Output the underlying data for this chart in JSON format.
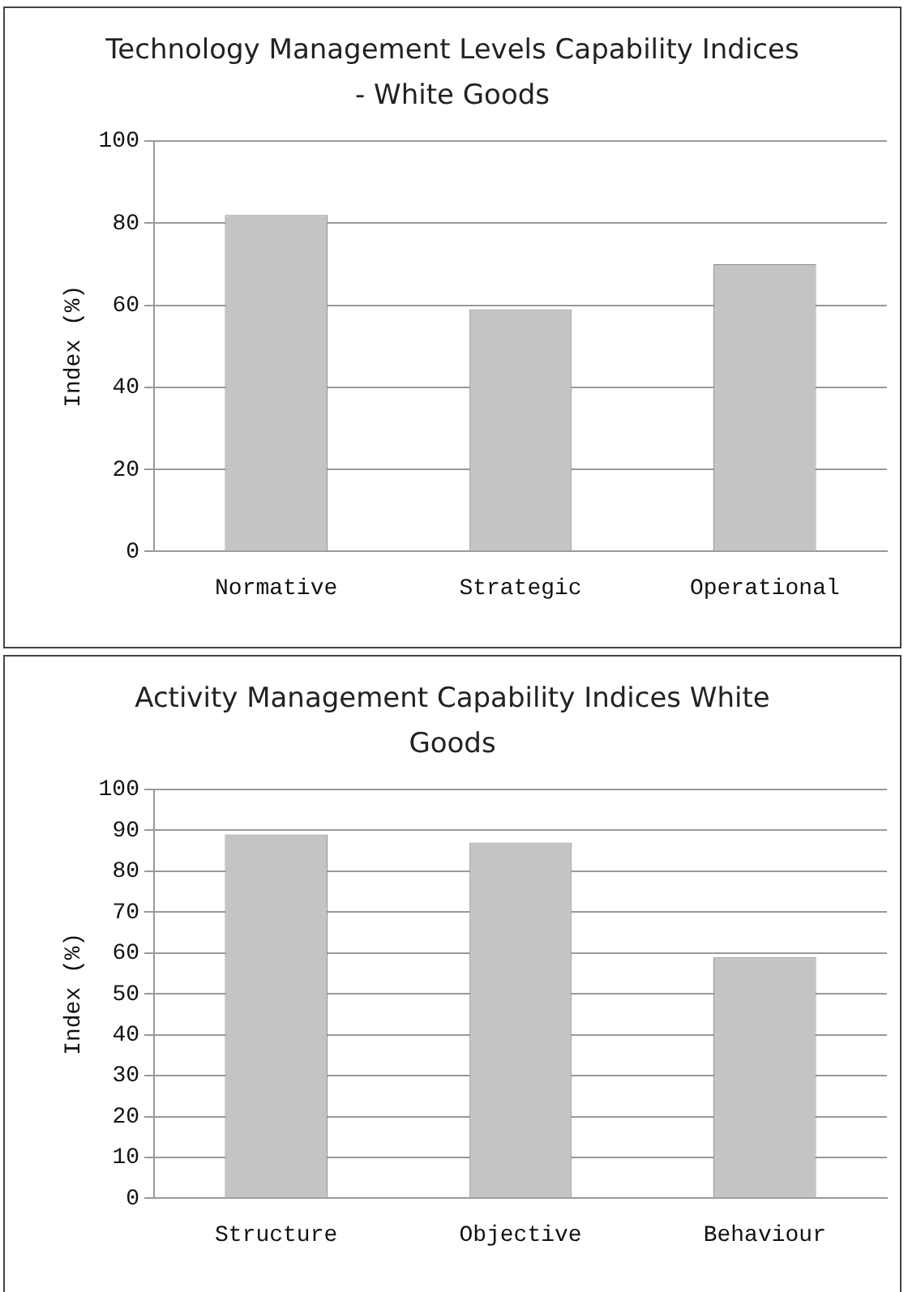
{
  "chart_data": [
    {
      "type": "bar",
      "title": "Technology Management Levels Capability Indices - White Goods",
      "ylabel": "Index (%)",
      "categories": [
        "Normative",
        "Strategic",
        "Operational"
      ],
      "values": [
        82,
        59,
        70
      ],
      "color": "#c4c4c4",
      "ylim": [
        0,
        100
      ],
      "yticks": [
        0,
        20,
        40,
        60,
        80,
        100
      ],
      "grid": "y"
    },
    {
      "type": "bar",
      "title": "Activity Management Capability Indices White Goods",
      "ylabel": "Index (%)",
      "categories": [
        "Structure",
        "Objective",
        "Behaviour"
      ],
      "values": [
        89,
        87,
        59
      ],
      "color": "#c4c4c4",
      "ylim": [
        0,
        100
      ],
      "yticks": [
        0,
        10,
        20,
        30,
        40,
        50,
        60,
        70,
        80,
        90,
        100
      ],
      "grid": "y"
    }
  ]
}
